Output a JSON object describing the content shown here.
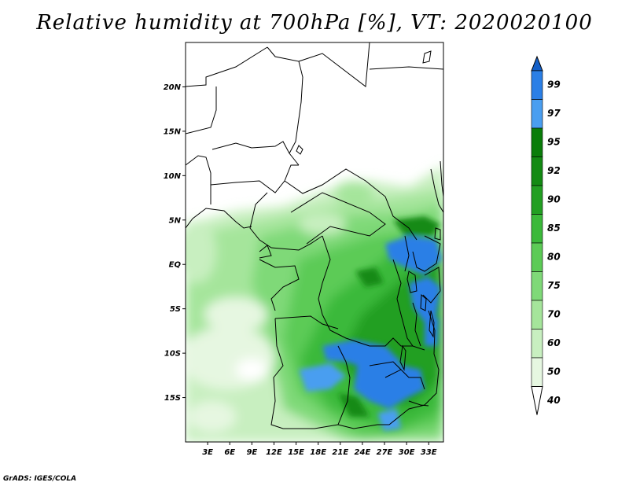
{
  "title": "Relative humidity at 700hPa [%], VT: 2020020100",
  "credit": "GrADS: IGES/COLA",
  "map": {
    "lon_range": [
      0,
      35
    ],
    "lat_range": [
      -20,
      25
    ],
    "lat_ticks": [
      {
        "value": 20,
        "label": "20N"
      },
      {
        "value": 15,
        "label": "15N"
      },
      {
        "value": 10,
        "label": "10N"
      },
      {
        "value": 5,
        "label": "5N"
      },
      {
        "value": 0,
        "label": "EQ"
      },
      {
        "value": -5,
        "label": "5S"
      },
      {
        "value": -10,
        "label": "10S"
      },
      {
        "value": -15,
        "label": "15S"
      }
    ],
    "lon_ticks": [
      {
        "value": 3,
        "label": "3E"
      },
      {
        "value": 6,
        "label": "6E"
      },
      {
        "value": 9,
        "label": "9E"
      },
      {
        "value": 12,
        "label": "12E"
      },
      {
        "value": 15,
        "label": "15E"
      },
      {
        "value": 18,
        "label": "18E"
      },
      {
        "value": 21,
        "label": "21E"
      },
      {
        "value": 24,
        "label": "24E"
      },
      {
        "value": 27,
        "label": "27E"
      },
      {
        "value": 30,
        "label": "30E"
      },
      {
        "value": 33,
        "label": "33E"
      }
    ]
  },
  "colorbar": {
    "levels": [
      "40",
      "50",
      "60",
      "70",
      "75",
      "80",
      "85",
      "90",
      "92",
      "95",
      "97",
      "99"
    ],
    "colors": [
      "#ffffff",
      "#e6f7e1",
      "#c8efc0",
      "#a5e59b",
      "#7fd978",
      "#5ccb56",
      "#3bb93a",
      "#229f22",
      "#138a13",
      "#0a7d0a",
      "#4a9ef0",
      "#2b7fe6",
      "#1560c8"
    ]
  }
}
